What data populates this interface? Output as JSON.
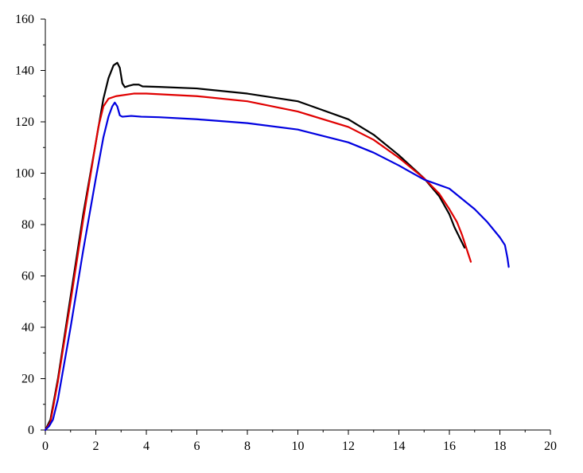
{
  "chart_data": {
    "type": "line",
    "title": "",
    "xlabel": "",
    "ylabel": "",
    "xlim": [
      0,
      20
    ],
    "ylim": [
      0,
      160
    ],
    "x_ticks": [
      0,
      2,
      4,
      6,
      8,
      10,
      12,
      14,
      16,
      18,
      20
    ],
    "y_ticks": [
      0,
      20,
      40,
      60,
      80,
      100,
      120,
      140,
      160
    ],
    "grid": false,
    "legend": "none",
    "series": [
      {
        "color": "#000000",
        "points": [
          [
            0,
            0
          ],
          [
            0.2,
            4
          ],
          [
            0.5,
            20
          ],
          [
            1.0,
            52
          ],
          [
            1.5,
            84
          ],
          [
            2.0,
            112
          ],
          [
            2.3,
            129
          ],
          [
            2.5,
            137
          ],
          [
            2.7,
            142
          ],
          [
            2.85,
            143
          ],
          [
            2.95,
            141
          ],
          [
            3.05,
            135
          ],
          [
            3.15,
            133.5
          ],
          [
            3.3,
            134
          ],
          [
            3.5,
            134.5
          ],
          [
            3.7,
            134.5
          ],
          [
            3.85,
            133.8
          ],
          [
            4.5,
            133.6
          ],
          [
            6,
            133
          ],
          [
            8,
            131
          ],
          [
            10,
            128
          ],
          [
            12,
            121
          ],
          [
            13,
            115
          ],
          [
            14,
            107
          ],
          [
            15,
            98
          ],
          [
            15.6,
            91
          ],
          [
            16.0,
            84
          ],
          [
            16.2,
            79
          ],
          [
            16.4,
            75
          ],
          [
            16.6,
            71
          ]
        ]
      },
      {
        "color": "#e00000",
        "points": [
          [
            0,
            0
          ],
          [
            0.2,
            3
          ],
          [
            0.5,
            19
          ],
          [
            1.0,
            50
          ],
          [
            1.5,
            82
          ],
          [
            1.9,
            106
          ],
          [
            2.1,
            118
          ],
          [
            2.3,
            126
          ],
          [
            2.5,
            129
          ],
          [
            2.8,
            130
          ],
          [
            3.5,
            131
          ],
          [
            4,
            131
          ],
          [
            6,
            130
          ],
          [
            8,
            128
          ],
          [
            10,
            124
          ],
          [
            12,
            118
          ],
          [
            13,
            113
          ],
          [
            14,
            106
          ],
          [
            15,
            98
          ],
          [
            15.6,
            92
          ],
          [
            16.0,
            86
          ],
          [
            16.3,
            81
          ],
          [
            16.5,
            76
          ],
          [
            16.7,
            70
          ],
          [
            16.85,
            65.5
          ]
        ]
      },
      {
        "color": "#0000e0",
        "points": [
          [
            0,
            0
          ],
          [
            0.15,
            1.5
          ],
          [
            0.3,
            4
          ],
          [
            0.5,
            12
          ],
          [
            1.0,
            40
          ],
          [
            1.5,
            70
          ],
          [
            2.0,
            98
          ],
          [
            2.3,
            114
          ],
          [
            2.5,
            122
          ],
          [
            2.65,
            126
          ],
          [
            2.75,
            127.5
          ],
          [
            2.85,
            126
          ],
          [
            2.95,
            122.5
          ],
          [
            3.05,
            122
          ],
          [
            3.4,
            122.3
          ],
          [
            3.8,
            122
          ],
          [
            4.5,
            121.8
          ],
          [
            6,
            121
          ],
          [
            8,
            119.5
          ],
          [
            10,
            117
          ],
          [
            12,
            112
          ],
          [
            13,
            108
          ],
          [
            14,
            103
          ],
          [
            15,
            97.5
          ],
          [
            16,
            94
          ],
          [
            16.5,
            90
          ],
          [
            17,
            86
          ],
          [
            17.5,
            81
          ],
          [
            18.0,
            75
          ],
          [
            18.2,
            72
          ],
          [
            18.3,
            67
          ],
          [
            18.35,
            63.5
          ]
        ]
      }
    ]
  }
}
